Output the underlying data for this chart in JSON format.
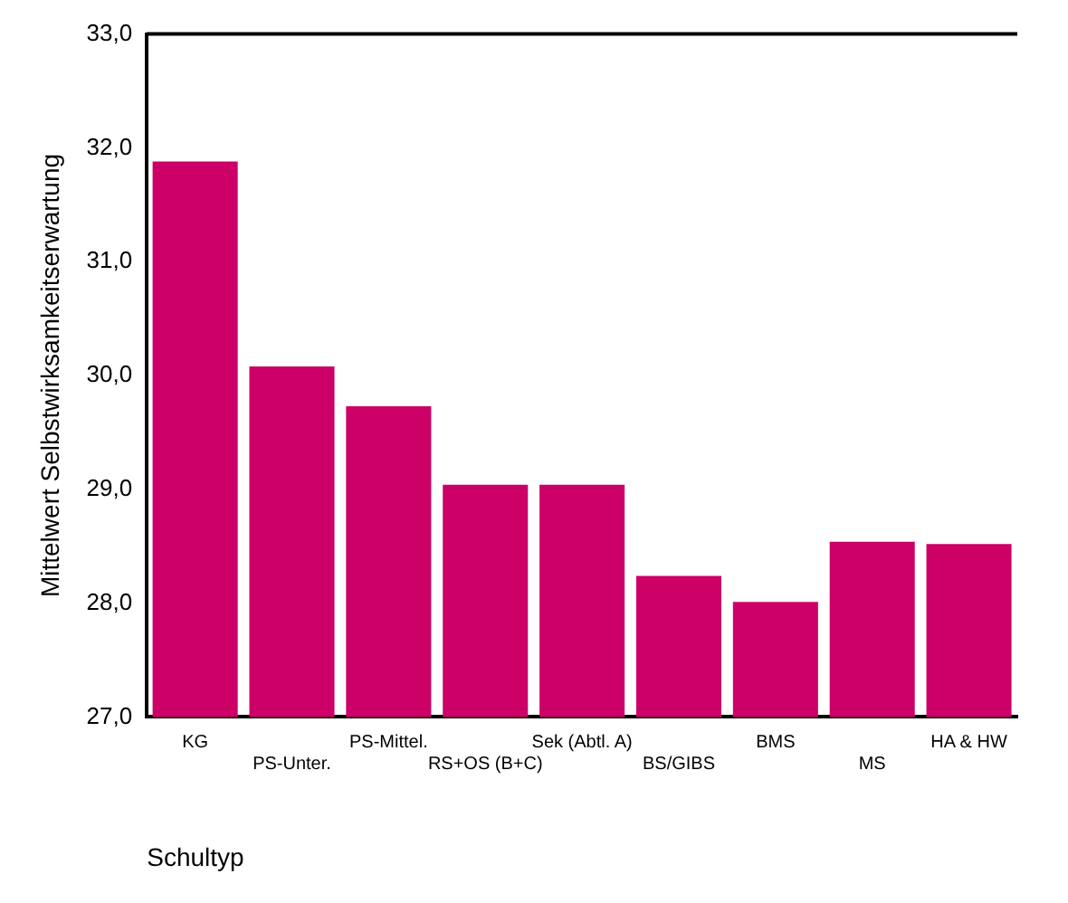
{
  "chart_data": {
    "type": "bar",
    "xlabel": "Schultyp",
    "ylabel": "Mittelwert Selbstwirksamkeitserwartung",
    "categories": [
      "KG",
      "PS-Unter.",
      "PS-Mittel.",
      "RS+OS (B+C)",
      "Sek (Abtl. A)",
      "BS/GIBS",
      "BMS",
      "MS",
      "HA & HW"
    ],
    "values": [
      31.88,
      30.08,
      29.73,
      29.04,
      29.04,
      28.24,
      28.01,
      28.54,
      28.52
    ],
    "color": "#cc0066",
    "ylim": [
      27,
      33
    ],
    "yticks": [
      {
        "value": 27,
        "label": "27,0"
      },
      {
        "value": 28,
        "label": "28,0"
      },
      {
        "value": 29,
        "label": "29,0"
      },
      {
        "value": 30,
        "label": "30,0"
      },
      {
        "value": 31,
        "label": "31,0"
      },
      {
        "value": 32,
        "label": "32,0"
      },
      {
        "value": 33,
        "label": "33,0"
      }
    ],
    "grid": false,
    "legend": false
  }
}
